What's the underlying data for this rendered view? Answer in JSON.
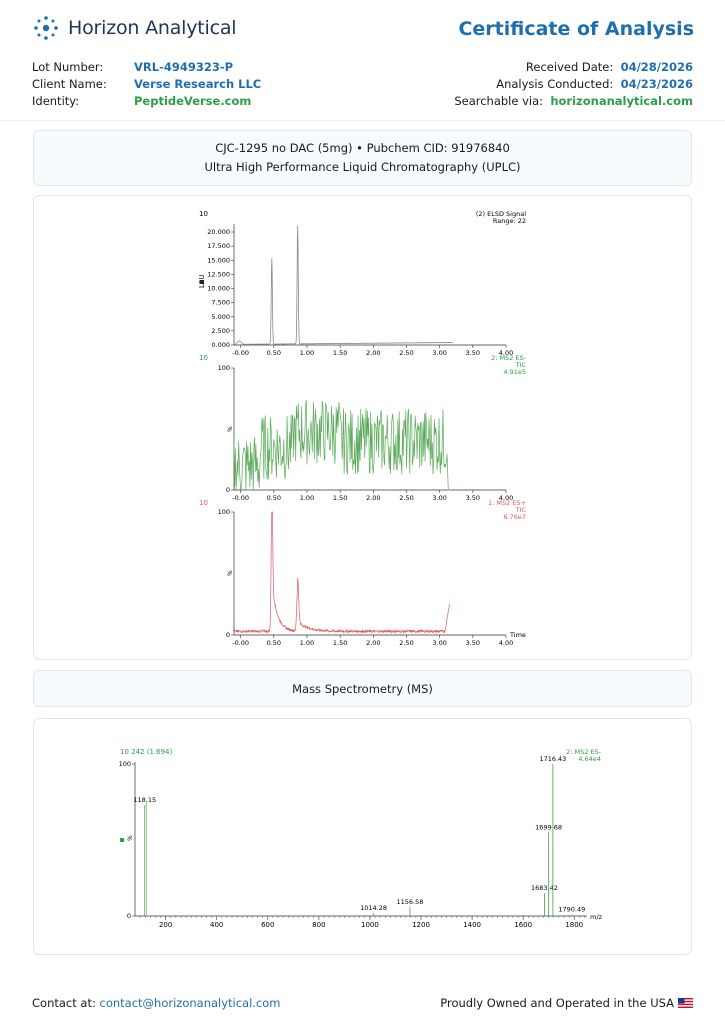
{
  "header": {
    "brand": "Horizon Analytical",
    "title": "Certificate of Analysis"
  },
  "meta_left": {
    "lot_label": "Lot Number:",
    "lot_value": "VRL-4949323-P",
    "client_label": "Client Name:",
    "client_value": "Verse Research LLC",
    "identity_label": "Identity:",
    "identity_value": "PeptideVerse.com"
  },
  "meta_right": {
    "received_label": "Received Date:",
    "received_value": "04/28/2026",
    "conducted_label": "Analysis Conducted:",
    "conducted_value": "04/23/2026",
    "search_label": "Searchable via:",
    "search_value": "horizonanalytical.com"
  },
  "uplc": {
    "compound": "CJC-1295 no DAC (5mg) • Pubchem CID: 91976840",
    "method": "Ultra High Performance Liquid Chromatography (UPLC)"
  },
  "ms": {
    "title": "Mass Spectrometry (MS)"
  },
  "colors": {
    "brand_blue": "#1f6fb0",
    "accent_green": "#2e9e46",
    "elsd_trace": "#8a8a8a",
    "tic_neg": "#5aaa5a",
    "tic_pos": "#e05a5a"
  },
  "chart_data": [
    {
      "type": "line",
      "panel_label": "10",
      "ylabel": "LSU",
      "series_label": "(2) ELSD Signal",
      "series_sub": "Range: 22",
      "xlim": [
        -0.1,
        4.0
      ],
      "ylim": [
        0,
        21500
      ],
      "xticks": [
        "-0.00",
        "0.50",
        "1.00",
        "1.50",
        "2.00",
        "2.50",
        "3.00",
        "3.50",
        "4.00"
      ],
      "yticks": [
        "0.000",
        "2.500",
        "5.000",
        "7.500",
        "10.000",
        "12.500",
        "15.000",
        "17.500",
        "20.000"
      ],
      "peaks": [
        {
          "x": 0.47,
          "y": 15200
        },
        {
          "x": 0.86,
          "y": 21000
        }
      ]
    },
    {
      "type": "line",
      "panel_label": "10",
      "ylabel": "%",
      "series_label": "2: MS2 ES-",
      "series_sub": "TIC",
      "series_sub2": "4.91e5",
      "xlim": [
        -0.1,
        4.0
      ],
      "ylim": [
        0,
        100
      ],
      "xticks": [
        "-0.00",
        "0.50",
        "1.00",
        "1.50",
        "2.00",
        "2.50",
        "3.00",
        "3.50",
        "4.00"
      ],
      "yticks": [
        "0",
        "100"
      ]
    },
    {
      "type": "line",
      "panel_label": "10",
      "ylabel": "%",
      "series_label": "1: MS2 ES+",
      "series_sub": "TIC",
      "series_sub2": "6.76e7",
      "xlabel": "Time",
      "xlim": [
        -0.1,
        4.0
      ],
      "ylim": [
        0,
        100
      ],
      "xticks": [
        "-0.00",
        "0.50",
        "1.00",
        "1.50",
        "2.00",
        "2.50",
        "3.00",
        "3.50",
        "4.00"
      ],
      "yticks": [
        "0",
        "100"
      ],
      "peaks": [
        {
          "x": 0.47,
          "y": 100
        },
        {
          "x": 0.86,
          "y": 35
        },
        {
          "x": 3.15,
          "y": 23
        }
      ]
    },
    {
      "type": "bar",
      "scan_label": "10 242 (1.694)",
      "ylabel": "%",
      "xlabel": "m/z",
      "series_label": "2: MS2 ES-",
      "series_sub": "4.64e4",
      "xlim": [
        80,
        1850
      ],
      "ylim": [
        0,
        100
      ],
      "xticks": [
        "200",
        "400",
        "600",
        "800",
        "1000",
        "1200",
        "1400",
        "1600",
        "1800"
      ],
      "yticks": [
        "0",
        "100"
      ],
      "peaks": [
        {
          "mz": 118.15,
          "label": "118.15",
          "intensity": 73
        },
        {
          "mz": 1014.28,
          "label": "1014.28",
          "intensity": 2
        },
        {
          "mz": 1156.58,
          "label": "1156.58",
          "intensity": 6
        },
        {
          "mz": 1683.42,
          "label": "1683.42",
          "intensity": 15
        },
        {
          "mz": 1699.68,
          "label": "1699.68",
          "intensity": 55
        },
        {
          "mz": 1716.43,
          "label": "1716.43",
          "intensity": 100
        },
        {
          "mz": 1790.49,
          "label": "1790.49",
          "intensity": 1
        }
      ]
    }
  ],
  "footer": {
    "contact_label": "Contact at:",
    "contact_email": "contact@horizonanalytical.com",
    "tagline": "Proudly Owned and Operated in the USA"
  }
}
